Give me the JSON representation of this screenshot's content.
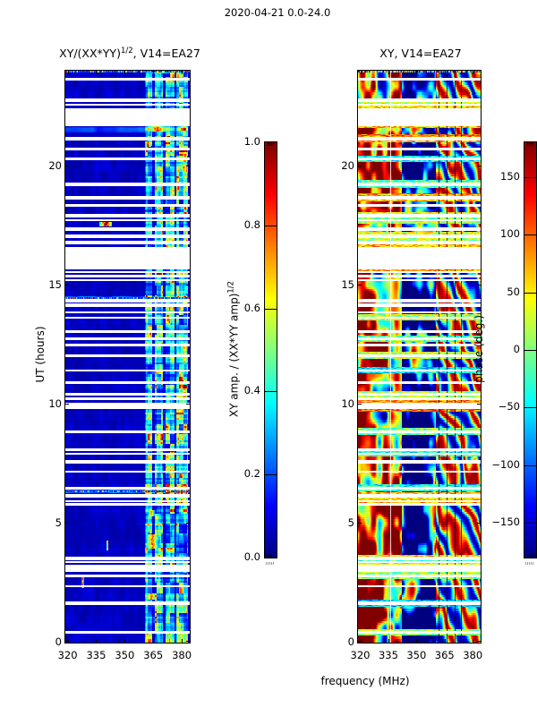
{
  "suptitle": "2020-04-21 0.0-24.0",
  "panels": {
    "amp": {
      "title_base": "XY/(XX*YY)",
      "title_sup": "1/2",
      "title_rest": ", V14=EA27",
      "ylabel": "UT (hours)"
    },
    "phase": {
      "title": "XY, V14=EA27",
      "xlabel": "frequency (MHz)"
    }
  },
  "colorbars": {
    "amp": {
      "label_base": "XY amp. / (XX*YY amp)",
      "label_sup": "1/2",
      "ticks": [
        "1.0",
        "0.8",
        "0.6",
        "0.4",
        "0.2",
        "0.0"
      ]
    },
    "phase": {
      "label": "phase (deg.)",
      "ticks": [
        "150",
        "100",
        "50",
        "0",
        "−50",
        "−100",
        "−150"
      ]
    }
  },
  "chart_data": [
    {
      "type": "heatmap",
      "title": "XY/(XX*YY)^(1/2), V14=EA27",
      "xlabel": "",
      "ylabel": "UT (hours)",
      "xlim": [
        318.8,
        384.2
      ],
      "ylim": [
        0,
        24
      ],
      "xticks": [
        320,
        335,
        350,
        365,
        380
      ],
      "yticks": [
        0,
        5,
        10,
        15,
        20
      ],
      "colormap": "jet",
      "value_label": "XY amp. / (XX*YY amp)^(1/2)",
      "value_range": [
        0,
        1
      ],
      "colorbar_ticks": [
        1.0,
        0.8,
        0.6,
        0.4,
        0.2,
        0.0
      ],
      "background_value": 0.05,
      "rfi_band_mhz": [
        360.3,
        383.6
      ],
      "band_gap_columns_mhz": [
        [
          364.3,
          365.7
        ],
        [
          370.1,
          371.5
        ],
        [
          376.0,
          377.3
        ]
      ],
      "time_gaps_ut": [
        [
          23.59,
          23.7
        ],
        [
          22.69,
          22.84
        ],
        [
          22.54,
          22.62
        ],
        [
          21.68,
          22.43
        ],
        [
          21.08,
          21.23
        ],
        [
          20.67,
          20.78
        ],
        [
          20.25,
          20.36
        ],
        [
          19.16,
          19.31
        ],
        [
          18.6,
          18.75
        ],
        [
          18.3,
          18.41
        ],
        [
          17.84,
          17.99
        ],
        [
          17.68,
          17.78
        ],
        [
          17.27,
          17.41
        ],
        [
          16.97,
          17.14
        ],
        [
          16.72,
          16.87
        ],
        [
          15.67,
          16.61
        ],
        [
          15.52,
          15.57
        ],
        [
          15.34,
          15.42
        ],
        [
          15.17,
          15.25
        ],
        [
          14.29,
          14.43
        ],
        [
          14.09,
          14.24
        ],
        [
          13.81,
          13.91
        ],
        [
          13.6,
          13.68
        ],
        [
          13.0,
          13.12
        ],
        [
          12.71,
          12.81
        ],
        [
          12.44,
          12.55
        ],
        [
          11.99,
          12.1
        ],
        [
          11.39,
          11.47
        ],
        [
          10.86,
          10.97
        ],
        [
          10.38,
          10.48
        ],
        [
          10.19,
          10.29
        ],
        [
          9.79,
          10.08
        ],
        [
          8.8,
          8.91
        ],
        [
          8.05,
          8.16
        ],
        [
          7.9,
          7.97
        ],
        [
          7.52,
          7.67
        ],
        [
          7.15,
          7.22
        ],
        [
          6.43,
          6.55
        ],
        [
          6.1,
          6.22
        ],
        [
          5.89,
          5.99
        ],
        [
          5.76,
          5.85
        ],
        [
          3.47,
          3.6
        ],
        [
          3.36,
          3.43
        ],
        [
          2.98,
          3.28
        ],
        [
          2.76,
          2.84
        ],
        [
          2.31,
          2.42
        ],
        [
          1.59,
          1.72
        ],
        [
          0.39,
          0.47
        ]
      ],
      "bursts": [
        {
          "t1": 17.45,
          "t2": 17.66,
          "f1": 336.5,
          "f2": 343.5,
          "v": 1.0
        },
        {
          "t1": 3.95,
          "t2": 4.55,
          "f1": 361,
          "f2": 368,
          "v": 0.8
        },
        {
          "t1": 5.3,
          "t2": 5.55,
          "f1": 362,
          "f2": 366,
          "v": 0.7
        },
        {
          "t1": 21.45,
          "t2": 21.95,
          "f1": 362,
          "f2": 372,
          "v": 0.72
        },
        {
          "t1": 20.82,
          "t2": 21.02,
          "f1": 360.5,
          "f2": 364,
          "v": 0.85
        },
        {
          "t1": 1.82,
          "t2": 2.05,
          "f1": 361,
          "f2": 367,
          "v": 0.78
        },
        {
          "t1": 23.9,
          "t2": 24.0,
          "f1": 361,
          "f2": 375,
          "v": 0.6
        },
        {
          "t1": 3.85,
          "t2": 4.3,
          "f1": 340.5,
          "f2": 341.5,
          "v": 0.85
        },
        {
          "t1": 2.3,
          "t2": 2.75,
          "f1": 327.5,
          "f2": 328.5,
          "v": 0.8
        }
      ],
      "bright_rows": [
        {
          "t1": 21.4,
          "t2": 21.62,
          "v": 0.17
        },
        {
          "t1": 14.4,
          "t2": 14.52,
          "v": 0.2
        },
        {
          "t1": 6.28,
          "t2": 6.42,
          "v": 0.2
        }
      ],
      "speckle_rows": [
        23.97,
        14.46,
        6.35
      ],
      "vline_dim_mhz": [
        336.3
      ],
      "seed": 11
    },
    {
      "type": "heatmap",
      "title": "XY, V14=EA27",
      "xlabel": "frequency (MHz)",
      "ylabel": "",
      "xlim": [
        318.8,
        384.2
      ],
      "ylim": [
        0,
        24
      ],
      "xticks": [
        320,
        335,
        350,
        365,
        380
      ],
      "yticks": [
        0,
        5,
        10,
        15,
        20
      ],
      "colormap": "jet",
      "value_label": "phase (deg.)",
      "value_range": [
        -180,
        180
      ],
      "colorbar_ticks": [
        150,
        100,
        50,
        0,
        -50,
        -100,
        -150
      ],
      "rfi_band_mhz": [
        360.3,
        383.6
      ],
      "region_bias": {
        "red_below_mhz": 342,
        "blue_mhz": [
          342,
          360.3
        ]
      },
      "vlines_light_mhz": [
        336.2
      ],
      "vlines_dark_mhz": [
        361.9,
        366.4,
        370.6,
        373.9
      ],
      "speckle_rows": [
        23.97
      ],
      "seed": 77
    }
  ]
}
